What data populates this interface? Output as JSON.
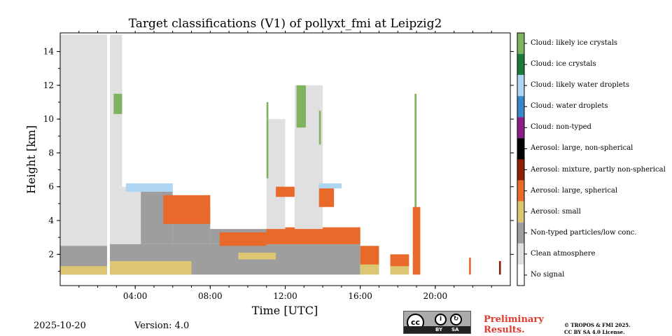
{
  "chart_data": {
    "type": "heatmap",
    "title": "Target classifications (V1) of pollyxt_fmi at Leipzig2",
    "xlabel": "Time [UTC]",
    "ylabel": "Height [km]",
    "xlim_hours": [
      0,
      24
    ],
    "ylim_km": [
      0.15,
      15.1
    ],
    "x_ticks": [
      {
        "value": 4,
        "label": "04:00"
      },
      {
        "value": 8,
        "label": "08:00"
      },
      {
        "value": 12,
        "label": "12:00"
      },
      {
        "value": 16,
        "label": "16:00"
      },
      {
        "value": 20,
        "label": "20:00"
      }
    ],
    "y_ticks": [
      {
        "value": 2,
        "label": "2"
      },
      {
        "value": 4,
        "label": "4"
      },
      {
        "value": 6,
        "label": "6"
      },
      {
        "value": 8,
        "label": "8"
      },
      {
        "value": 10,
        "label": "10"
      },
      {
        "value": 12,
        "label": "12"
      },
      {
        "value": 14,
        "label": "14"
      }
    ],
    "classes": [
      {
        "label": "Cloud: likely ice crystals",
        "color": "#7fb35f"
      },
      {
        "label": "Cloud: ice crystals",
        "color": "#1a7a3c"
      },
      {
        "label": "Cloud: likely water droplets",
        "color": "#aed5f2"
      },
      {
        "label": "Cloud: water droplets",
        "color": "#3a87c8"
      },
      {
        "label": "Cloud: non-typed",
        "color": "#8a1f8a"
      },
      {
        "label": "Aerosol: large, non-spherical",
        "color": "#000000"
      },
      {
        "label": "Aerosol: mixture, partly non-spherical",
        "color": "#8c2000"
      },
      {
        "label": "Aerosol: large, spherical",
        "color": "#e8692a"
      },
      {
        "label": "Aerosol: small",
        "color": "#dcc674"
      },
      {
        "label": "Non-typed particles/low conc.",
        "color": "#9e9e9e"
      },
      {
        "label": "Clean atmosphere",
        "color": "#e0e0e0"
      },
      {
        "label": "No signal",
        "color": "#ffffff"
      }
    ],
    "regions": [
      {
        "cls": "Clean atmosphere",
        "x": [
          0,
          2.5
        ],
        "y": [
          2.5,
          15.0
        ]
      },
      {
        "cls": "Non-typed particles/low conc.",
        "x": [
          0,
          2.5
        ],
        "y": [
          0.8,
          2.5
        ]
      },
      {
        "cls": "Aerosol: small",
        "x": [
          0,
          2.5
        ],
        "y": [
          0.8,
          1.3
        ]
      },
      {
        "cls": "Clean atmosphere",
        "x": [
          2.65,
          4.3
        ],
        "y": [
          2.5,
          6.0
        ]
      },
      {
        "cls": "Clean atmosphere",
        "x": [
          2.65,
          3.3
        ],
        "y": [
          6.0,
          15.0
        ]
      },
      {
        "cls": "Non-typed particles/low conc.",
        "x": [
          2.65,
          16.0
        ],
        "y": [
          0.8,
          2.6
        ]
      },
      {
        "cls": "Aerosol: small",
        "x": [
          2.65,
          7.0
        ],
        "y": [
          0.8,
          1.6
        ]
      },
      {
        "cls": "Non-typed particles/low conc.",
        "x": [
          4.3,
          6.0
        ],
        "y": [
          2.6,
          5.9
        ]
      },
      {
        "cls": "Non-typed particles/low conc.",
        "x": [
          6.0,
          8.0
        ],
        "y": [
          2.6,
          4.8
        ]
      },
      {
        "cls": "Non-typed particles/low conc.",
        "x": [
          8.0,
          16.0
        ],
        "y": [
          2.6,
          3.5
        ]
      },
      {
        "cls": "Aerosol: small",
        "x": [
          9.5,
          11.5
        ],
        "y": [
          1.7,
          2.1
        ]
      },
      {
        "cls": "Aerosol: large, spherical",
        "x": [
          8.5,
          11.0
        ],
        "y": [
          2.5,
          3.3
        ]
      },
      {
        "cls": "Aerosol: large, spherical",
        "x": [
          11.0,
          16.0
        ],
        "y": [
          2.6,
          3.6
        ]
      },
      {
        "cls": "Aerosol: large, spherical",
        "x": [
          5.5,
          8.0
        ],
        "y": [
          3.8,
          5.5
        ]
      },
      {
        "cls": "Cloud: likely water droplets",
        "x": [
          3.5,
          6.0
        ],
        "y": [
          5.7,
          6.2
        ]
      },
      {
        "cls": "Clean atmosphere",
        "x": [
          11.0,
          12.0
        ],
        "y": [
          3.5,
          10.0
        ]
      },
      {
        "cls": "Aerosol: large, spherical",
        "x": [
          11.5,
          12.5
        ],
        "y": [
          5.4,
          6.0
        ]
      },
      {
        "cls": "Clean atmosphere",
        "x": [
          12.5,
          14.0
        ],
        "y": [
          3.5,
          12.0
        ]
      },
      {
        "cls": "Aerosol: large, spherical",
        "x": [
          13.8,
          14.6
        ],
        "y": [
          4.8,
          6.1
        ]
      },
      {
        "cls": "Cloud: likely water droplets",
        "x": [
          13.8,
          15.0
        ],
        "y": [
          5.9,
          6.2
        ]
      },
      {
        "cls": "Cloud: likely ice crystals",
        "x": [
          2.85,
          3.3
        ],
        "y": [
          10.3,
          11.5
        ]
      },
      {
        "cls": "Cloud: likely ice crystals",
        "x": [
          11.0,
          11.1
        ],
        "y": [
          6.5,
          11.0
        ]
      },
      {
        "cls": "Cloud: likely ice crystals",
        "x": [
          12.6,
          13.1
        ],
        "y": [
          9.5,
          12.0
        ]
      },
      {
        "cls": "Cloud: likely ice crystals",
        "x": [
          13.8,
          13.9
        ],
        "y": [
          8.5,
          10.5
        ]
      },
      {
        "cls": "Cloud: likely ice crystals",
        "x": [
          18.9,
          19.0
        ],
        "y": [
          4.5,
          11.5
        ]
      },
      {
        "cls": "Aerosol: small",
        "x": [
          16.0,
          17.0
        ],
        "y": [
          0.8,
          1.6
        ]
      },
      {
        "cls": "Aerosol: large, spherical",
        "x": [
          16.0,
          17.0
        ],
        "y": [
          1.4,
          2.5
        ]
      },
      {
        "cls": "Aerosol: small",
        "x": [
          17.6,
          18.6
        ],
        "y": [
          0.8,
          1.4
        ]
      },
      {
        "cls": "Aerosol: large, spherical",
        "x": [
          17.6,
          18.6
        ],
        "y": [
          1.3,
          2.0
        ]
      },
      {
        "cls": "Aerosol: large, spherical",
        "x": [
          18.8,
          19.2
        ],
        "y": [
          0.8,
          4.8
        ]
      },
      {
        "cls": "Aerosol: large, spherical",
        "x": [
          21.8,
          21.9
        ],
        "y": [
          0.8,
          1.8
        ]
      },
      {
        "cls": "Aerosol: mixture, partly non-spherical",
        "x": [
          23.4,
          23.5
        ],
        "y": [
          0.8,
          1.6
        ]
      }
    ]
  },
  "legend_title": "",
  "footer": {
    "date": "2025-10-20",
    "version": "Version: 4.0",
    "cc_by": "BY",
    "cc_sa": "SA",
    "cc_logo": "cc",
    "preliminary_line1": "Preliminary",
    "preliminary_line2": "Results.",
    "copyright_line1": "© TROPOS & FMI 2025.",
    "copyright_line2": "CC BY SA 4.0 License."
  }
}
